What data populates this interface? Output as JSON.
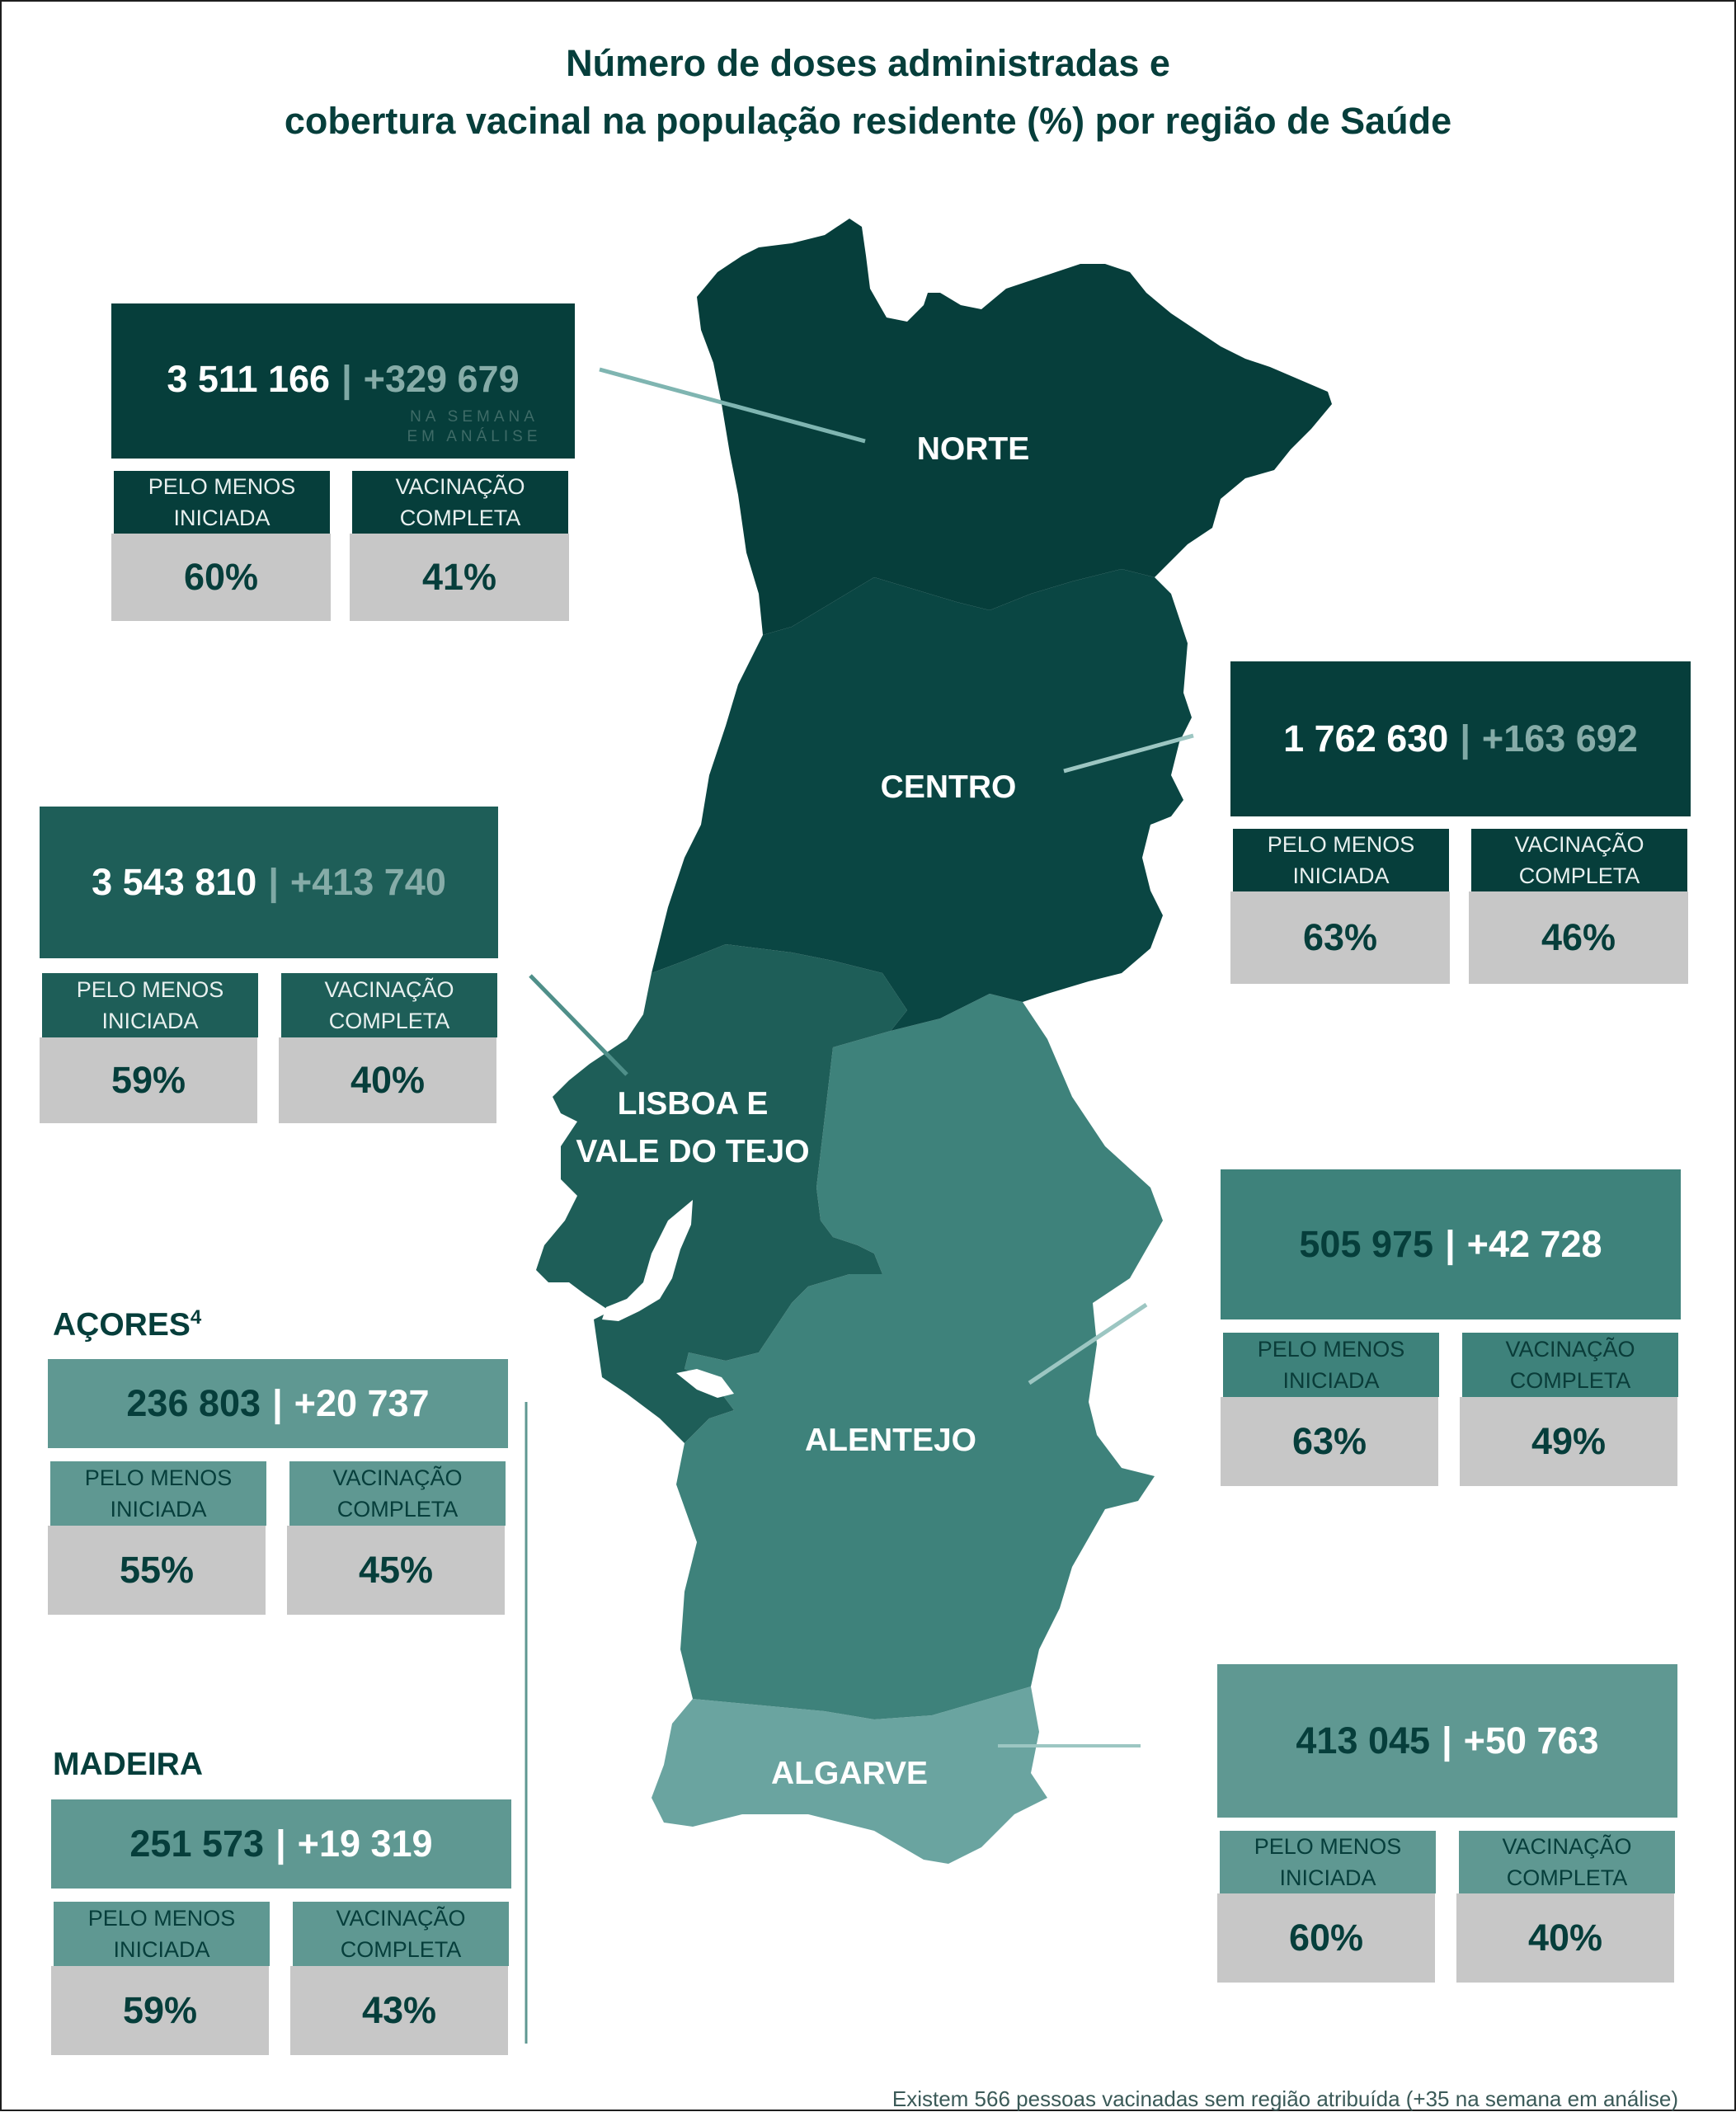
{
  "title": {
    "line1": "Número de doses administradas e",
    "line2": "cobertura vacinal na população residente (%) por região de Saúde"
  },
  "labels": {
    "at_least_started": "PELO MENOS\nINICIADA",
    "complete": "VACINAÇÃO\nCOMPLETA",
    "week_note_1": "NA SEMANA",
    "week_note_2": "EM ANÁLISE",
    "separator": "|"
  },
  "regions": {
    "norte": {
      "name": "NORTE",
      "total": "3 511 166",
      "week": "+329 679",
      "started": "60%",
      "complete": "41%"
    },
    "centro": {
      "name": "CENTRO",
      "total": "1 762 630",
      "week": "+163 692",
      "started": "63%",
      "complete": "46%"
    },
    "lisboa": {
      "name_line1": "LISBOA E",
      "name_line2": "VALE DO TEJO",
      "total": "3 543 810",
      "week": "+413 740",
      "started": "59%",
      "complete": "40%"
    },
    "alentejo": {
      "name": "ALENTEJO",
      "total": "505 975",
      "week": "+42 728",
      "started": "63%",
      "complete": "49%"
    },
    "algarve": {
      "name": "ALGARVE",
      "total": "413 045",
      "week": "+50 763",
      "started": "60%",
      "complete": "40%"
    },
    "acores": {
      "name": "AÇORES",
      "footnote": "4",
      "total": "236 803",
      "week": "+20 737",
      "started": "55%",
      "complete": "45%"
    },
    "madeira": {
      "name": "MADEIRA",
      "total": "251 573",
      "week": "+19 319",
      "started": "59%",
      "complete": "43%"
    }
  },
  "colors": {
    "norte": "#063e3b",
    "centro": "#0a4643",
    "lisboa": "#1e5e58",
    "alentejo": "#3e827b",
    "algarve": "#6aa4a0",
    "head_dark": "#063e3b",
    "head_mid": "#1e5e58",
    "head_light": "#3e827b",
    "head_pale": "#5f9892",
    "value_bg": "#c7c7c7",
    "title": "#063e3b"
  },
  "footer": "Existem 566 pessoas vacinadas sem região atribuída (+35 na semana em análise)"
}
